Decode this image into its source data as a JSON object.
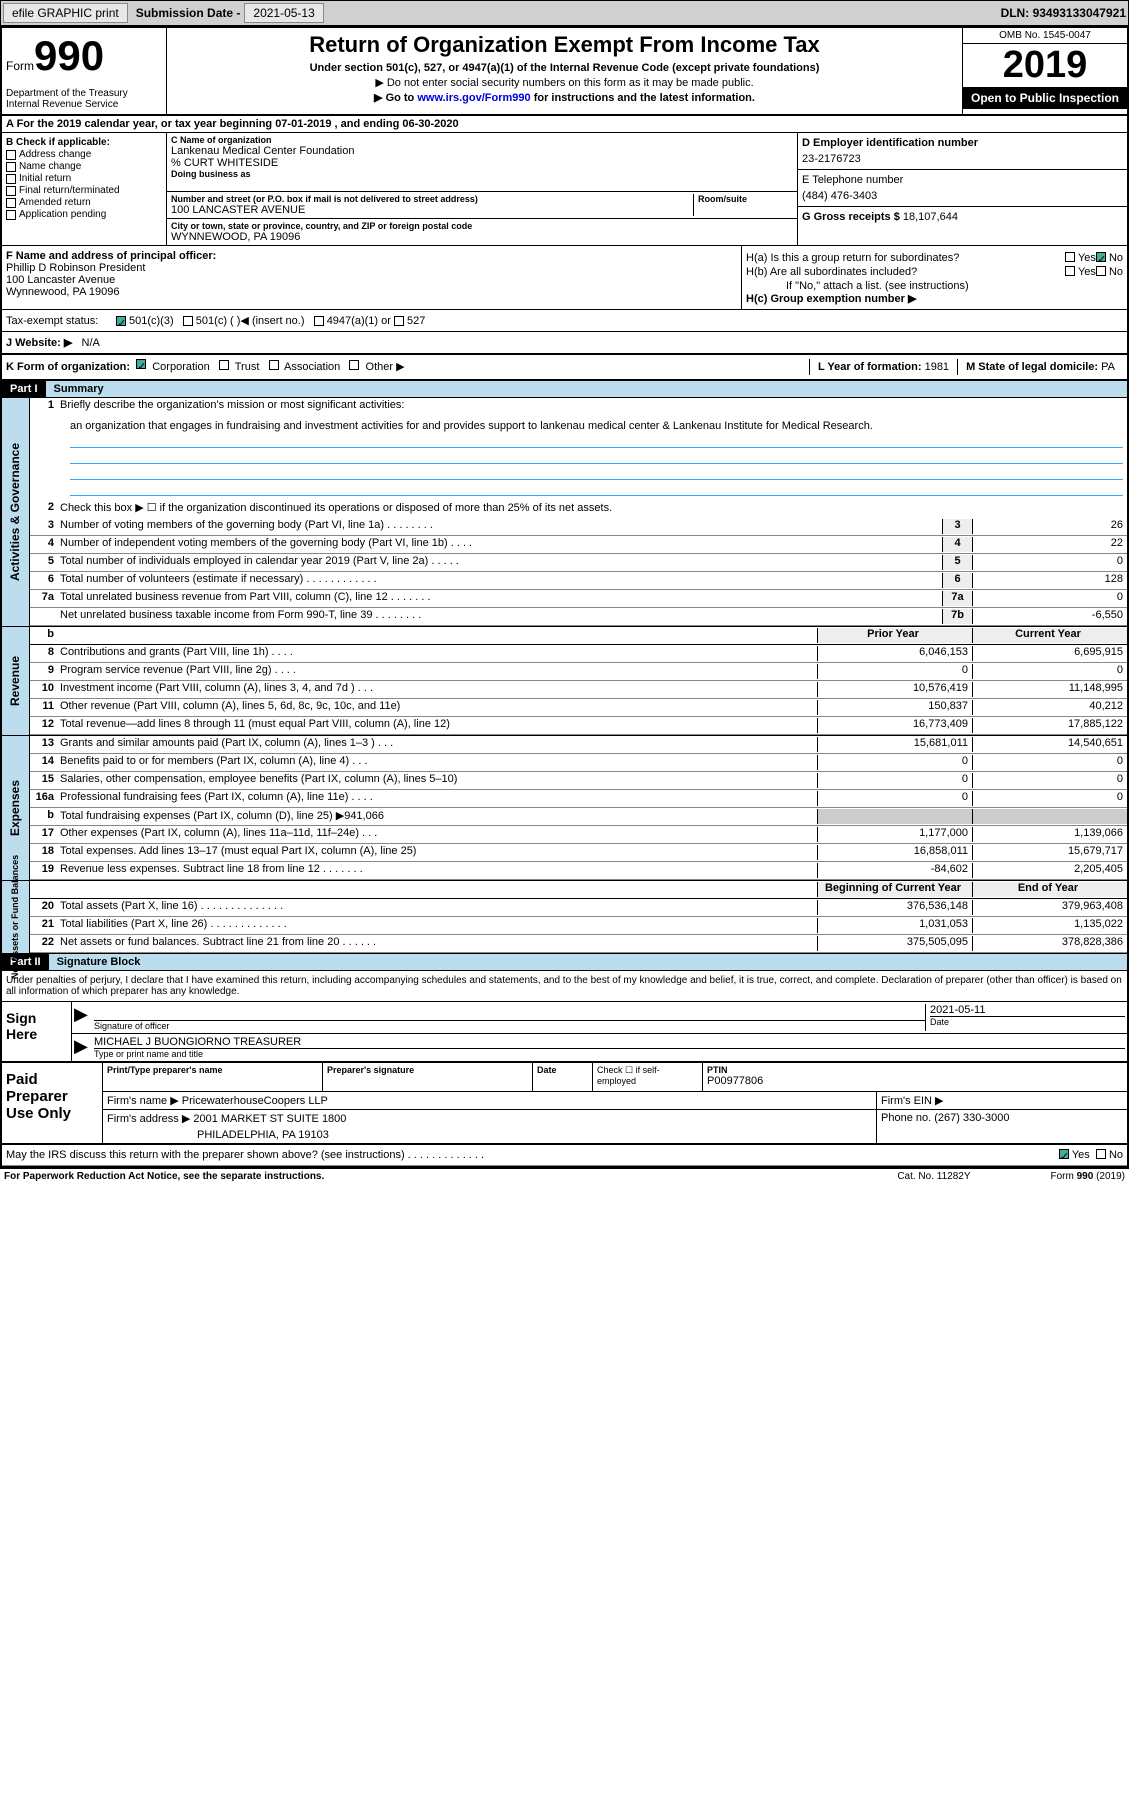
{
  "topbar": {
    "efile": "efile GRAPHIC print",
    "sub_label": "Submission Date - ",
    "sub_date": "2021-05-13",
    "dln_label": "DLN: ",
    "dln": "93493133047921"
  },
  "header": {
    "form_prefix": "Form",
    "form_num": "990",
    "dept": "Department of the Treasury\nInternal Revenue Service",
    "title": "Return of Organization Exempt From Income Tax",
    "subtitle": "Under section 501(c), 527, or 4947(a)(1) of the Internal Revenue Code (except private foundations)",
    "instr1": "▶ Do not enter social security numbers on this form as it may be made public.",
    "instr2_pre": "▶ Go to ",
    "instr2_link": "www.irs.gov/Form990",
    "instr2_post": " for instructions and the latest information.",
    "omb": "OMB No. 1545-0047",
    "year": "2019",
    "inspect": "Open to Public Inspection"
  },
  "row_a": "A For the 2019 calendar year, or tax year beginning 07-01-2019   , and ending 06-30-2020",
  "section_b": {
    "label": "B Check if applicable:",
    "items": [
      "Address change",
      "Name change",
      "Initial return",
      "Final return/terminated",
      "Amended return",
      "Application pending"
    ]
  },
  "section_c": {
    "name_label": "C Name of organization",
    "name": "Lankenau Medical Center Foundation",
    "care_of": "% CURT WHITESIDE",
    "dba_label": "Doing business as",
    "addr_label": "Number and street (or P.O. box if mail is not delivered to street address)",
    "room_label": "Room/suite",
    "addr": "100 LANCASTER AVENUE",
    "city_label": "City or town, state or province, country, and ZIP or foreign postal code",
    "city": "WYNNEWOOD, PA  19096"
  },
  "section_d": {
    "ein_label": "D Employer identification number",
    "ein": "23-2176723",
    "phone_label": "E Telephone number",
    "phone": "(484) 476-3403",
    "gross_label": "G Gross receipts $ ",
    "gross": "18,107,644"
  },
  "section_f": {
    "label": "F  Name and address of principal officer:",
    "name": "Phillip D Robinson President",
    "addr1": "100 Lancaster Avenue",
    "addr2": "Wynnewood, PA  19096"
  },
  "section_h": {
    "ha": "H(a)  Is this a group return for subordinates?",
    "hb": "H(b)  Are all subordinates included?",
    "hb_note": "If \"No,\" attach a list. (see instructions)",
    "hc": "H(c)  Group exemption number ▶",
    "yes": "Yes",
    "no": "No"
  },
  "tax_status": {
    "label": "Tax-exempt status:",
    "c3": "501(c)(3)",
    "c": "501(c) (  )",
    "insert": "◀ (insert no.)",
    "a1": "4947(a)(1) or",
    "s527": "527"
  },
  "website": {
    "label": "J  Website: ▶",
    "val": "N/A"
  },
  "k_row": {
    "label": "K Form of organization:",
    "corp": "Corporation",
    "trust": "Trust",
    "assoc": "Association",
    "other": "Other ▶",
    "l_label": "L Year of formation: ",
    "l_val": "1981",
    "m_label": "M State of legal domicile: ",
    "m_val": "PA"
  },
  "part1": {
    "hdr": "Part I",
    "title": "Summary",
    "q1": "Briefly describe the organization's mission or most significant activities:",
    "mission": "an organization that engages in fundraising and investment activities for and provides support to lankenau medical center & Lankenau Institute for Medical Research.",
    "q2": "Check this box ▶ ☐  if the organization discontinued its operations or disposed of more than 25% of its net assets.",
    "side_gov": "Activities & Governance",
    "side_rev": "Revenue",
    "side_exp": "Expenses",
    "side_net": "Net Assets or Fund Balances",
    "lines_gov": [
      {
        "n": "3",
        "t": "Number of voting members of the governing body (Part VI, line 1a)   .    .    .    .    .    .    .    .",
        "box": "3",
        "v": "26"
      },
      {
        "n": "4",
        "t": "Number of independent voting members of the governing body (Part VI, line 1b)   .    .    .    .",
        "box": "4",
        "v": "22"
      },
      {
        "n": "5",
        "t": "Total number of individuals employed in calendar year 2019 (Part V, line 2a)   .    .    .    .    .",
        "box": "5",
        "v": "0"
      },
      {
        "n": "6",
        "t": "Total number of volunteers (estimate if necessary)    .    .    .    .    .    .    .    .    .    .    .    .",
        "box": "6",
        "v": "128"
      },
      {
        "n": "7a",
        "t": "Total unrelated business revenue from Part VIII, column (C), line 12    .    .    .    .    .    .    .",
        "box": "7a",
        "v": "0"
      },
      {
        "n": "",
        "t": "Net unrelated business taxable income from Form 990-T, line 39    .    .    .    .    .    .    .    .",
        "box": "7b",
        "v": "-6,550"
      }
    ],
    "col_prior": "Prior Year",
    "col_current": "Current Year",
    "lines_rev": [
      {
        "n": "8",
        "t": "Contributions and grants (Part VIII, line 1h)    .    .    .    .",
        "p": "6,046,153",
        "c": "6,695,915"
      },
      {
        "n": "9",
        "t": "Program service revenue (Part VIII, line 2g)    .    .    .    .",
        "p": "0",
        "c": "0"
      },
      {
        "n": "10",
        "t": "Investment income (Part VIII, column (A), lines 3, 4, and 7d )    .    .    .",
        "p": "10,576,419",
        "c": "11,148,995"
      },
      {
        "n": "11",
        "t": "Other revenue (Part VIII, column (A), lines 5, 6d, 8c, 9c, 10c, and 11e)",
        "p": "150,837",
        "c": "40,212"
      },
      {
        "n": "12",
        "t": "Total revenue—add lines 8 through 11 (must equal Part VIII, column (A), line 12)",
        "p": "16,773,409",
        "c": "17,885,122"
      }
    ],
    "lines_exp": [
      {
        "n": "13",
        "t": "Grants and similar amounts paid (Part IX, column (A), lines 1–3 )    .    .    .",
        "p": "15,681,011",
        "c": "14,540,651"
      },
      {
        "n": "14",
        "t": "Benefits paid to or for members (Part IX, column (A), line 4)    .    .    .",
        "p": "0",
        "c": "0"
      },
      {
        "n": "15",
        "t": "Salaries, other compensation, employee benefits (Part IX, column (A), lines 5–10)",
        "p": "0",
        "c": "0"
      },
      {
        "n": "16a",
        "t": "Professional fundraising fees (Part IX, column (A), line 11e)    .    .    .    .",
        "p": "0",
        "c": "0"
      },
      {
        "n": "b",
        "t": "Total fundraising expenses (Part IX, column (D), line 25) ▶941,066",
        "p": "",
        "c": "",
        "shade": true
      },
      {
        "n": "17",
        "t": "Other expenses (Part IX, column (A), lines 11a–11d, 11f–24e)    .    .    .",
        "p": "1,177,000",
        "c": "1,139,066"
      },
      {
        "n": "18",
        "t": "Total expenses. Add lines 13–17 (must equal Part IX, column (A), line 25)",
        "p": "16,858,011",
        "c": "15,679,717"
      },
      {
        "n": "19",
        "t": "Revenue less expenses. Subtract line 18 from line 12   .    .    .    .    .    .    .",
        "p": "-84,602",
        "c": "2,205,405"
      }
    ],
    "col_begin": "Beginning of Current Year",
    "col_end": "End of Year",
    "lines_net": [
      {
        "n": "20",
        "t": "Total assets (Part X, line 16)   .    .    .    .    .    .    .    .    .    .    .    .    .    .",
        "p": "376,536,148",
        "c": "379,963,408"
      },
      {
        "n": "21",
        "t": "Total liabilities (Part X, line 26)   .    .    .    .    .    .    .    .    .    .    .    .    .",
        "p": "1,031,053",
        "c": "1,135,022"
      },
      {
        "n": "22",
        "t": "Net assets or fund balances. Subtract line 21 from line 20   .    .    .    .    .    .",
        "p": "375,505,095",
        "c": "378,828,386"
      }
    ]
  },
  "part2": {
    "hdr": "Part II",
    "title": "Signature Block",
    "decl": "Under penalties of perjury, I declare that I have examined this return, including accompanying schedules and statements, and to the best of my knowledge and belief, it is true, correct, and complete. Declaration of preparer (other than officer) is based on all information of which preparer has any knowledge.",
    "sign_here": "Sign Here",
    "sig_officer": "Signature of officer",
    "sig_date_label": "Date",
    "sig_date": "2021-05-11",
    "officer_name": "MICHAEL J BUONGIORNO  TREASURER",
    "type_name": "Type or print name and title",
    "paid": "Paid Preparer Use Only",
    "prep_name": "Print/Type preparer's name",
    "prep_sig": "Preparer's signature",
    "prep_date": "Date",
    "check_self": "Check ☐ if self-employed",
    "ptin_label": "PTIN",
    "ptin": "P00977806",
    "firm_name_label": "Firm's name    ▶",
    "firm_name": "PricewaterhouseCoopers LLP",
    "firm_ein_label": "Firm's EIN ▶",
    "firm_addr_label": "Firm's address ▶",
    "firm_addr": "2001 MARKET ST SUITE 1800",
    "firm_city": "PHILADELPHIA, PA  19103",
    "firm_phone_label": "Phone no. ",
    "firm_phone": "(267) 330-3000",
    "discuss": "May the IRS discuss this return with the preparer shown above? (see instructions)    .    .    .    .    .    .    .    .    .    .    .    .    ."
  },
  "footer": {
    "left": "For Paperwork Reduction Act Notice, see the separate instructions.",
    "mid": "Cat. No. 11282Y",
    "right": "Form 990 (2019)"
  }
}
